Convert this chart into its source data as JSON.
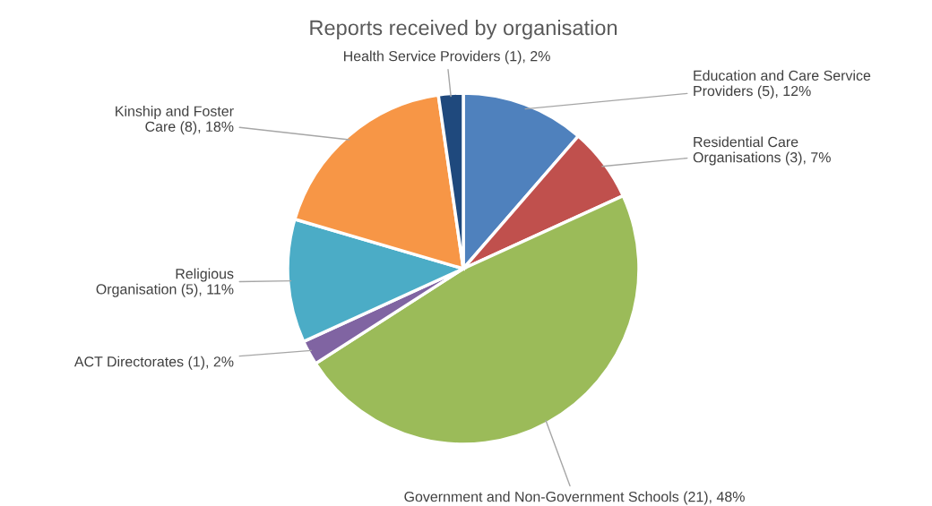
{
  "chart_data": {
    "type": "pie",
    "title": "Reports received by organisation",
    "categories": [
      "Education and Care Service\nProviders (5), 12%",
      "Residential Care\nOrganisations (3), 7%",
      "Government and Non-Government Schools (21), 48%",
      "ACT Directorates (1), 2%",
      "Religious\nOrganisation (5), 11%",
      "Kinship and Foster\nCare (8), 18%",
      "Health Service Providers (1), 2%"
    ],
    "values": [
      5,
      3,
      21,
      1,
      5,
      8,
      1
    ],
    "colors": [
      "#4f81bd",
      "#c0504d",
      "#9bbb59",
      "#8064a2",
      "#4bacc6",
      "#f79646",
      "#1f497d"
    ]
  }
}
